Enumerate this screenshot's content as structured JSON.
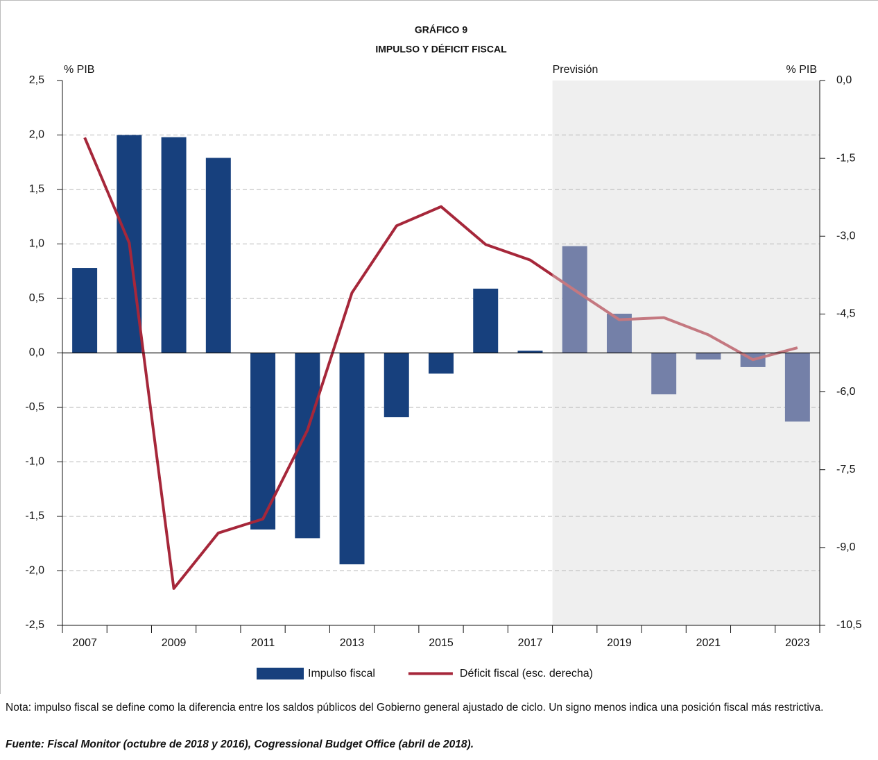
{
  "chart_data": {
    "type": "bar",
    "title": "GRÁFICO 9",
    "subtitle": "IMPULSO Y DÉFICIT FISCAL",
    "ylabel": "% PIB",
    "y2label": "% PIB",
    "x": [
      2007,
      2008,
      2009,
      2010,
      2011,
      2012,
      2013,
      2014,
      2015,
      2016,
      2017,
      2018,
      2019,
      2020,
      2021,
      2022,
      2023
    ],
    "xlim": [
      2006.5,
      2023.5
    ],
    "xticks": [
      2007,
      2009,
      2011,
      2013,
      2015,
      2017,
      2019,
      2021,
      2023
    ],
    "ylim": [
      -2.5,
      2.5
    ],
    "yticks": [
      {
        "value": 2.5,
        "label": "2,5"
      },
      {
        "value": 2.0,
        "label": "2,0"
      },
      {
        "value": 1.5,
        "label": "1,5"
      },
      {
        "value": 1.0,
        "label": "1,0"
      },
      {
        "value": 0.5,
        "label": "0,5"
      },
      {
        "value": 0,
        "label": "0,0"
      },
      {
        "value": -0.5,
        "label": "-0,5"
      },
      {
        "value": -1.0,
        "label": "-1,0"
      },
      {
        "value": -1.5,
        "label": "-1,5"
      },
      {
        "value": -2.0,
        "label": "-2,0"
      },
      {
        "value": -2.5,
        "label": "-2,5"
      }
    ],
    "y2lim": [
      -10.5,
      0
    ],
    "y2ticks": [
      {
        "value": 0,
        "label": "0,0"
      },
      {
        "value": -1.5,
        "label": "-1,5"
      },
      {
        "value": -3.0,
        "label": "-3,0"
      },
      {
        "value": -4.5,
        "label": "-4,5"
      },
      {
        "value": -6.0,
        "label": "-6,0"
      },
      {
        "value": -7.5,
        "label": "-7,5"
      },
      {
        "value": -9.0,
        "label": "-9,0"
      },
      {
        "value": -10.5,
        "label": "-10,5"
      }
    ],
    "grid": true,
    "legend": "bottom",
    "forecast": {
      "label": "Previsión",
      "start": 2017.5,
      "color": "#efefef"
    },
    "series": [
      {
        "name": "Impulso fiscal",
        "type": "bar",
        "color": "#17407d",
        "forecast_color": "#7480a8",
        "values": [
          0.78,
          2.0,
          1.98,
          1.79,
          -1.62,
          -1.7,
          -1.94,
          -0.59,
          -0.19,
          0.59,
          0.02,
          0.98,
          0.36,
          -0.38,
          -0.06,
          -0.13,
          -0.63
        ]
      },
      {
        "name": "Déficit fiscal (esc. derecha)",
        "type": "line",
        "axis": "y2",
        "color": "#a6273a",
        "forecast_color": "#c47880",
        "values": [
          -1.1,
          -3.13,
          -9.79,
          -8.72,
          -8.45,
          -6.74,
          -4.09,
          -2.8,
          -2.43,
          -3.16,
          -3.46,
          -4.04,
          -4.61,
          -4.57,
          -4.9,
          -5.38,
          -5.15
        ]
      }
    ]
  },
  "note": "Nota: impulso fiscal se define como la diferencia entre los saldos públicos del Gobierno general ajustado de ciclo. Un signo menos indica una posición fiscal más restrictiva.",
  "source": "Fuente: Fiscal Monitor (octubre de 2018 y 2016), Cogressional Budget Office (abril de 2018)."
}
